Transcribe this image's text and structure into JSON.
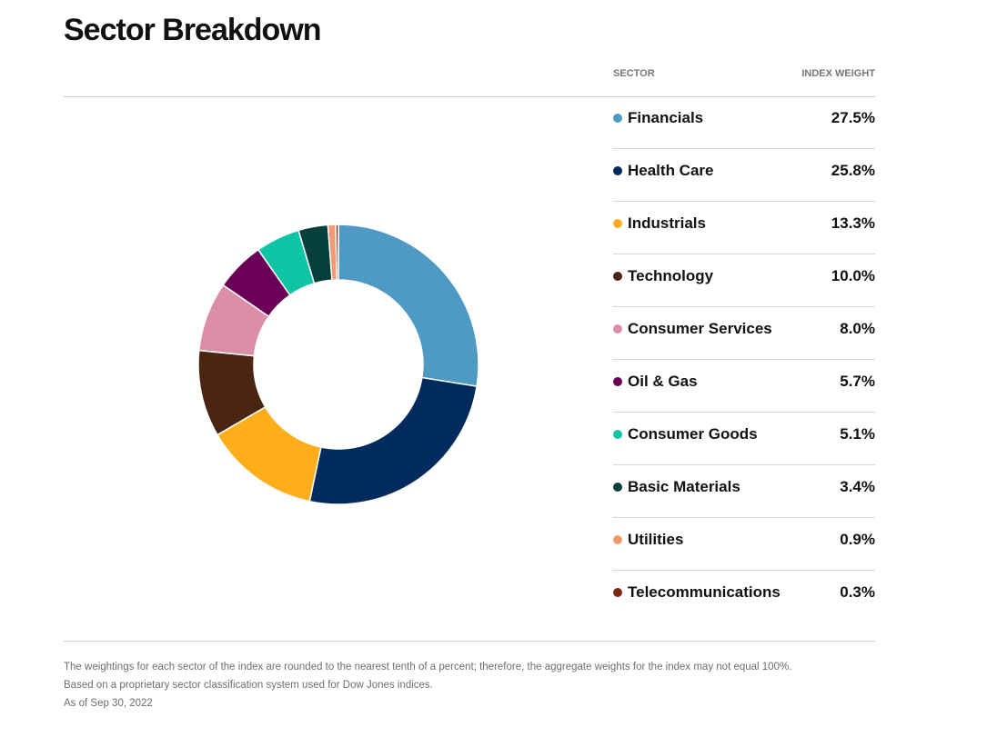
{
  "title": "Sector Breakdown",
  "legend_headers": {
    "sector": "SECTOR",
    "weight": "INDEX WEIGHT"
  },
  "chart_data": {
    "type": "pie",
    "style": "donut",
    "categories": [
      "Financials",
      "Health Care",
      "Industrials",
      "Technology",
      "Consumer Services",
      "Oil & Gas",
      "Consumer Goods",
      "Basic Materials",
      "Utilities",
      "Telecommunications"
    ],
    "values": [
      27.5,
      25.8,
      13.3,
      10.0,
      8.0,
      5.7,
      5.1,
      3.4,
      0.9,
      0.3
    ],
    "value_labels": [
      "27.5%",
      "25.8%",
      "13.3%",
      "10.0%",
      "8.0%",
      "5.7%",
      "5.1%",
      "3.4%",
      "0.9%",
      "0.3%"
    ],
    "colors": [
      "#4f99c5",
      "#002b5c",
      "#ffad1a",
      "#4a2612",
      "#db8fa7",
      "#6a0058",
      "#10c5a5",
      "#073f3c",
      "#f29a6f",
      "#7a2a14"
    ],
    "legend_placement": "right"
  },
  "footnotes": [
    "The weightings for each sector of the index are rounded to the nearest tenth of a percent; therefore, the aggregate weights for the index may not equal 100%.",
    "Based on a proprietary sector classification system used for Dow Jones indices.",
    "As of Sep 30, 2022"
  ]
}
